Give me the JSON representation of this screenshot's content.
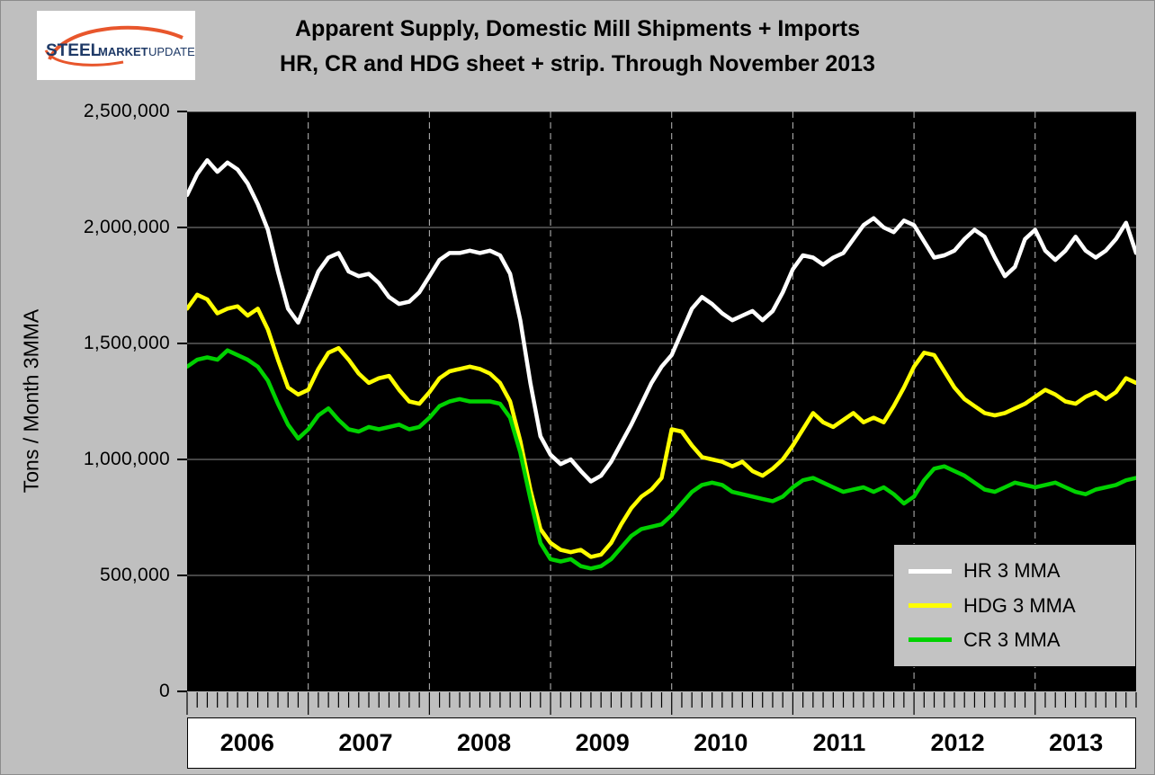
{
  "logo": {
    "steel": "STEEL",
    "market": "MARKET",
    "update": "UPDATE"
  },
  "title": {
    "line1": "Apparent Supply, Domestic Mill Shipments + Imports",
    "line2": "HR, CR and HDG sheet + strip. Through November 2013"
  },
  "y_axis": {
    "title": "Tons / Month 3MMA",
    "labels": [
      "2,500,000",
      "2,000,000",
      "1,500,000",
      "1,000,000",
      "500,000",
      "0"
    ]
  },
  "legend": {
    "items": [
      "HR 3 MMA",
      "HDG 3 MMA",
      "CR 3 MMA"
    ]
  },
  "chart_data": {
    "type": "line",
    "title": "Apparent Supply, Domestic Mill Shipments + Imports — HR, CR and HDG sheet + strip. Through November 2013",
    "ylabel": "Tons / Month 3MMA",
    "ylim": [
      0,
      2500000
    ],
    "y_tick_step": 500000,
    "x_years": [
      "2006",
      "2007",
      "2008",
      "2009",
      "2010",
      "2011",
      "2012",
      "2013"
    ],
    "x_start": "2006-01",
    "x_end": "2013-11",
    "frequency": "monthly",
    "grid": {
      "horizontal": "solid gray",
      "vertical": "dashed at year boundaries"
    },
    "legend_position": "lower right",
    "plot_background": "#000000",
    "series": [
      {
        "name": "HR 3 MMA",
        "color": "#ffffff",
        "values": [
          2140000,
          2230000,
          2290000,
          2240000,
          2280000,
          2250000,
          2190000,
          2100000,
          1990000,
          1810000,
          1650000,
          1590000,
          1700000,
          1810000,
          1870000,
          1890000,
          1810000,
          1790000,
          1800000,
          1760000,
          1700000,
          1670000,
          1680000,
          1720000,
          1790000,
          1860000,
          1890000,
          1890000,
          1900000,
          1890000,
          1900000,
          1880000,
          1800000,
          1600000,
          1330000,
          1100000,
          1020000,
          980000,
          1000000,
          950000,
          905000,
          930000,
          990000,
          1070000,
          1150000,
          1240000,
          1330000,
          1400000,
          1450000,
          1550000,
          1650000,
          1700000,
          1670000,
          1630000,
          1600000,
          1620000,
          1640000,
          1600000,
          1640000,
          1720000,
          1820000,
          1880000,
          1870000,
          1840000,
          1870000,
          1890000,
          1950000,
          2010000,
          2040000,
          2000000,
          1980000,
          2030000,
          2010000,
          1940000,
          1870000,
          1880000,
          1900000,
          1950000,
          1990000,
          1960000,
          1870000,
          1790000,
          1830000,
          1950000,
          1990000,
          1900000,
          1860000,
          1900000,
          1960000,
          1900000,
          1870000,
          1900000,
          1950000,
          2020000,
          1890000
        ]
      },
      {
        "name": "HDG 3 MMA",
        "color": "#ffff00",
        "values": [
          1650000,
          1710000,
          1690000,
          1630000,
          1650000,
          1660000,
          1620000,
          1650000,
          1560000,
          1430000,
          1310000,
          1280000,
          1300000,
          1390000,
          1460000,
          1480000,
          1430000,
          1370000,
          1330000,
          1350000,
          1360000,
          1300000,
          1250000,
          1240000,
          1290000,
          1350000,
          1380000,
          1390000,
          1400000,
          1390000,
          1370000,
          1330000,
          1250000,
          1080000,
          870000,
          700000,
          640000,
          610000,
          600000,
          610000,
          580000,
          590000,
          640000,
          720000,
          790000,
          840000,
          870000,
          920000,
          1130000,
          1120000,
          1060000,
          1010000,
          1000000,
          990000,
          970000,
          990000,
          950000,
          930000,
          960000,
          1000000,
          1060000,
          1130000,
          1200000,
          1160000,
          1140000,
          1170000,
          1200000,
          1160000,
          1180000,
          1160000,
          1230000,
          1310000,
          1400000,
          1460000,
          1450000,
          1380000,
          1310000,
          1260000,
          1230000,
          1200000,
          1190000,
          1200000,
          1220000,
          1240000,
          1270000,
          1300000,
          1280000,
          1250000,
          1240000,
          1270000,
          1290000,
          1260000,
          1290000,
          1350000,
          1330000
        ]
      },
      {
        "name": "CR 3 MMA",
        "color": "#00d200",
        "values": [
          1400000,
          1430000,
          1440000,
          1430000,
          1470000,
          1450000,
          1430000,
          1400000,
          1340000,
          1240000,
          1150000,
          1090000,
          1130000,
          1190000,
          1220000,
          1170000,
          1130000,
          1120000,
          1140000,
          1130000,
          1140000,
          1150000,
          1130000,
          1140000,
          1180000,
          1230000,
          1250000,
          1260000,
          1250000,
          1250000,
          1250000,
          1240000,
          1180000,
          1030000,
          830000,
          640000,
          570000,
          560000,
          570000,
          540000,
          530000,
          540000,
          570000,
          620000,
          670000,
          700000,
          710000,
          720000,
          760000,
          810000,
          860000,
          890000,
          900000,
          890000,
          860000,
          850000,
          840000,
          830000,
          820000,
          840000,
          880000,
          910000,
          920000,
          900000,
          880000,
          860000,
          870000,
          880000,
          860000,
          880000,
          850000,
          810000,
          840000,
          910000,
          960000,
          970000,
          950000,
          930000,
          900000,
          870000,
          860000,
          880000,
          900000,
          890000,
          880000,
          890000,
          900000,
          880000,
          860000,
          850000,
          870000,
          880000,
          890000,
          910000,
          920000
        ]
      }
    ]
  }
}
